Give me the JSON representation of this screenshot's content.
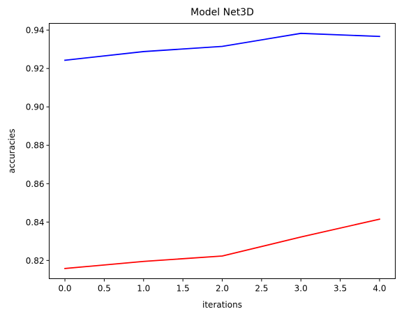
{
  "chart_data": {
    "type": "line",
    "title": "Model Net3D",
    "xlabel": "iterations",
    "ylabel": "accuracies",
    "x": [
      0,
      1,
      2,
      3,
      4
    ],
    "series": [
      {
        "color": "#0000ff",
        "values": [
          0.9243,
          0.9288,
          0.9315,
          0.9383,
          0.9367
        ]
      },
      {
        "color": "#ff0000",
        "values": [
          0.8158,
          0.8195,
          0.8223,
          0.8322,
          0.8415
        ]
      }
    ],
    "xlim": [
      -0.2,
      4.2
    ],
    "ylim": [
      0.8105,
      0.9435
    ],
    "xticks": [
      0.0,
      0.5,
      1.0,
      1.5,
      2.0,
      2.5,
      3.0,
      3.5,
      4.0
    ],
    "xtick_labels": [
      "0.0",
      "0.5",
      "1.0",
      "1.5",
      "2.0",
      "2.5",
      "3.0",
      "3.5",
      "4.0"
    ],
    "yticks": [
      0.82,
      0.84,
      0.86,
      0.88,
      0.9,
      0.92,
      0.94
    ],
    "ytick_labels": [
      "0.82",
      "0.84",
      "0.86",
      "0.88",
      "0.90",
      "0.92",
      "0.94"
    ],
    "grid": false,
    "legend": "none"
  }
}
